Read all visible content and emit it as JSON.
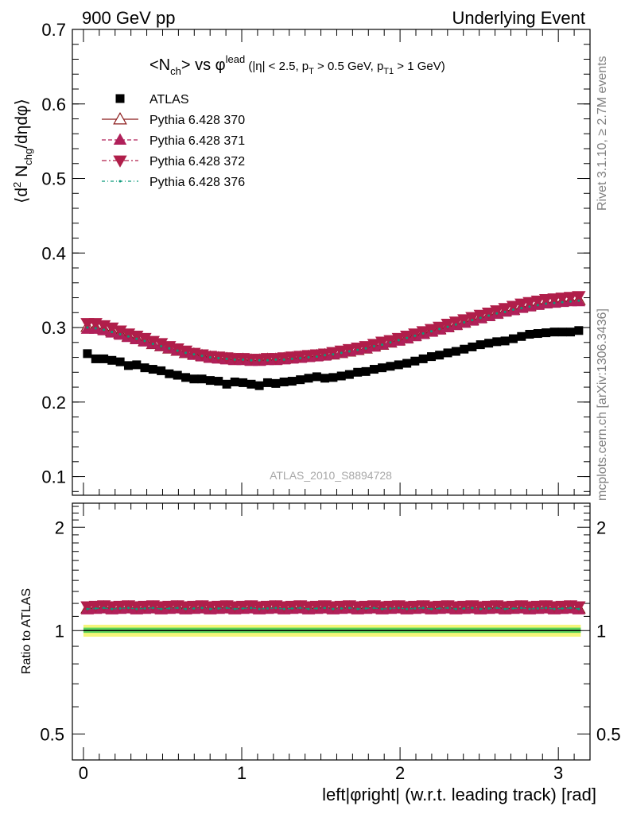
{
  "header": {
    "left": "900 GeV pp",
    "right": "Underlying Event"
  },
  "plot_title": {
    "main": "<N_ch> vs φ^lead",
    "cuts": "(|η| < 2.5, p_T > 0.5 GeV, p_T1 > 1 GeV)"
  },
  "side_labels": {
    "rivet": "Rivet 3.1.10, ≥ 2.7M events",
    "mcplots": "mcplots.cern.ch [arXiv:1306.3436]"
  },
  "watermark": "ATLAS_2010_S8894728",
  "axes": {
    "ylabel_main": "⟨d² N_chg/dηdφ⟩",
    "ylabel_ratio": "Ratio to ATLAS",
    "xlabel": "left|φright| (w.r.t. leading track) [rad]"
  },
  "colors": {
    "atlas": "#000000",
    "py370": "#8b1a1a",
    "py371": "#b0205a",
    "py372": "#b01e4a",
    "py376": "#0a9a7a",
    "band_green": "#5ad25a",
    "band_yellow": "#f5f57a"
  },
  "chart_data": [
    {
      "type": "scatter",
      "panel": "main",
      "ylim": [
        0.075,
        0.7
      ],
      "xlim": [
        -0.07,
        3.2
      ],
      "yticks": [
        0.1,
        0.2,
        0.3,
        0.4,
        0.5,
        0.6,
        0.7
      ],
      "xticks": [
        0,
        1,
        2,
        3
      ],
      "legend_position": "top-left",
      "x": [
        0.025,
        0.077,
        0.129,
        0.18,
        0.232,
        0.284,
        0.336,
        0.387,
        0.439,
        0.491,
        0.542,
        0.594,
        0.646,
        0.698,
        0.749,
        0.801,
        0.853,
        0.905,
        0.956,
        1.008,
        1.06,
        1.111,
        1.163,
        1.215,
        1.267,
        1.318,
        1.37,
        1.422,
        1.474,
        1.525,
        1.577,
        1.629,
        1.68,
        1.732,
        1.784,
        1.836,
        1.887,
        1.939,
        1.991,
        2.043,
        2.094,
        2.146,
        2.198,
        2.249,
        2.301,
        2.353,
        2.405,
        2.456,
        2.508,
        2.56,
        2.611,
        2.663,
        2.715,
        2.767,
        2.818,
        2.87,
        2.922,
        2.974,
        3.025,
        3.077,
        3.129
      ],
      "series": [
        {
          "name": "ATLAS",
          "marker": "square",
          "values": [
            0.265,
            0.258,
            0.258,
            0.256,
            0.254,
            0.249,
            0.25,
            0.246,
            0.244,
            0.242,
            0.238,
            0.236,
            0.233,
            0.231,
            0.231,
            0.229,
            0.228,
            0.224,
            0.227,
            0.226,
            0.224,
            0.222,
            0.226,
            0.225,
            0.227,
            0.228,
            0.23,
            0.232,
            0.234,
            0.232,
            0.233,
            0.235,
            0.237,
            0.24,
            0.241,
            0.244,
            0.246,
            0.248,
            0.25,
            0.252,
            0.255,
            0.258,
            0.261,
            0.263,
            0.266,
            0.268,
            0.271,
            0.274,
            0.277,
            0.279,
            0.281,
            0.282,
            0.285,
            0.288,
            0.291,
            0.292,
            0.293,
            0.294,
            0.294,
            0.294,
            0.296
          ]
        },
        {
          "name": "Pythia 6.428 370",
          "marker": "triangle-up-open",
          "line": "solid",
          "values": [
            0.301,
            0.3,
            0.298,
            0.295,
            0.292,
            0.288,
            0.285,
            0.282,
            0.278,
            0.275,
            0.272,
            0.269,
            0.266,
            0.264,
            0.262,
            0.26,
            0.259,
            0.258,
            0.257,
            0.257,
            0.256,
            0.256,
            0.257,
            0.257,
            0.258,
            0.259,
            0.26,
            0.261,
            0.262,
            0.263,
            0.264,
            0.266,
            0.268,
            0.27,
            0.272,
            0.275,
            0.277,
            0.28,
            0.283,
            0.286,
            0.289,
            0.292,
            0.295,
            0.298,
            0.301,
            0.304,
            0.307,
            0.31,
            0.313,
            0.316,
            0.319,
            0.322,
            0.324,
            0.327,
            0.329,
            0.331,
            0.333,
            0.334,
            0.335,
            0.336,
            0.337
          ]
        },
        {
          "name": "Pythia 6.428 371",
          "marker": "triangle-up",
          "line": "dashed",
          "values": [
            0.298,
            0.298,
            0.296,
            0.293,
            0.29,
            0.287,
            0.284,
            0.281,
            0.278,
            0.275,
            0.272,
            0.269,
            0.266,
            0.263,
            0.261,
            0.259,
            0.258,
            0.257,
            0.256,
            0.256,
            0.255,
            0.255,
            0.256,
            0.256,
            0.257,
            0.258,
            0.259,
            0.26,
            0.261,
            0.262,
            0.264,
            0.266,
            0.268,
            0.27,
            0.272,
            0.274,
            0.277,
            0.28,
            0.282,
            0.285,
            0.288,
            0.291,
            0.294,
            0.297,
            0.3,
            0.303,
            0.306,
            0.309,
            0.312,
            0.315,
            0.318,
            0.321,
            0.323,
            0.326,
            0.328,
            0.33,
            0.332,
            0.333,
            0.334,
            0.335,
            0.335
          ]
        },
        {
          "name": "Pythia 6.428 372",
          "marker": "triangle-down",
          "line": "dash-dot",
          "values": [
            0.306,
            0.306,
            0.303,
            0.3,
            0.296,
            0.292,
            0.289,
            0.286,
            0.282,
            0.279,
            0.275,
            0.272,
            0.269,
            0.266,
            0.264,
            0.262,
            0.261,
            0.26,
            0.259,
            0.259,
            0.258,
            0.258,
            0.259,
            0.259,
            0.26,
            0.261,
            0.262,
            0.263,
            0.264,
            0.265,
            0.267,
            0.269,
            0.271,
            0.273,
            0.275,
            0.278,
            0.281,
            0.283,
            0.286,
            0.289,
            0.292,
            0.295,
            0.298,
            0.301,
            0.305,
            0.308,
            0.311,
            0.314,
            0.317,
            0.32,
            0.323,
            0.326,
            0.329,
            0.332,
            0.334,
            0.336,
            0.338,
            0.339,
            0.34,
            0.341,
            0.342
          ]
        },
        {
          "name": "Pythia 6.428 376",
          "marker": "dot",
          "line": "dash-dot-green",
          "values": [
            0.3,
            0.299,
            0.297,
            0.294,
            0.291,
            0.288,
            0.285,
            0.282,
            0.278,
            0.275,
            0.272,
            0.269,
            0.266,
            0.264,
            0.262,
            0.26,
            0.259,
            0.258,
            0.257,
            0.257,
            0.256,
            0.256,
            0.256,
            0.257,
            0.257,
            0.258,
            0.259,
            0.26,
            0.261,
            0.263,
            0.264,
            0.266,
            0.268,
            0.27,
            0.272,
            0.275,
            0.277,
            0.28,
            0.283,
            0.286,
            0.289,
            0.292,
            0.295,
            0.298,
            0.301,
            0.304,
            0.307,
            0.31,
            0.313,
            0.316,
            0.319,
            0.321,
            0.324,
            0.326,
            0.328,
            0.33,
            0.332,
            0.333,
            0.334,
            0.335,
            0.336
          ]
        }
      ]
    },
    {
      "type": "line",
      "panel": "ratio",
      "ylim": [
        0.42,
        2.35
      ],
      "log_y": true,
      "yticks": [
        0.5,
        1,
        2
      ],
      "band": {
        "green": [
          0.985,
          1.02
        ],
        "yellow": [
          0.96,
          1.04
        ]
      },
      "series_ratio": {
        "Pythia 6.428 370": 1.165,
        "Pythia 6.428 371": 1.155,
        "Pythia 6.428 372": 1.18,
        "Pythia 6.428 376": 1.16
      }
    }
  ]
}
